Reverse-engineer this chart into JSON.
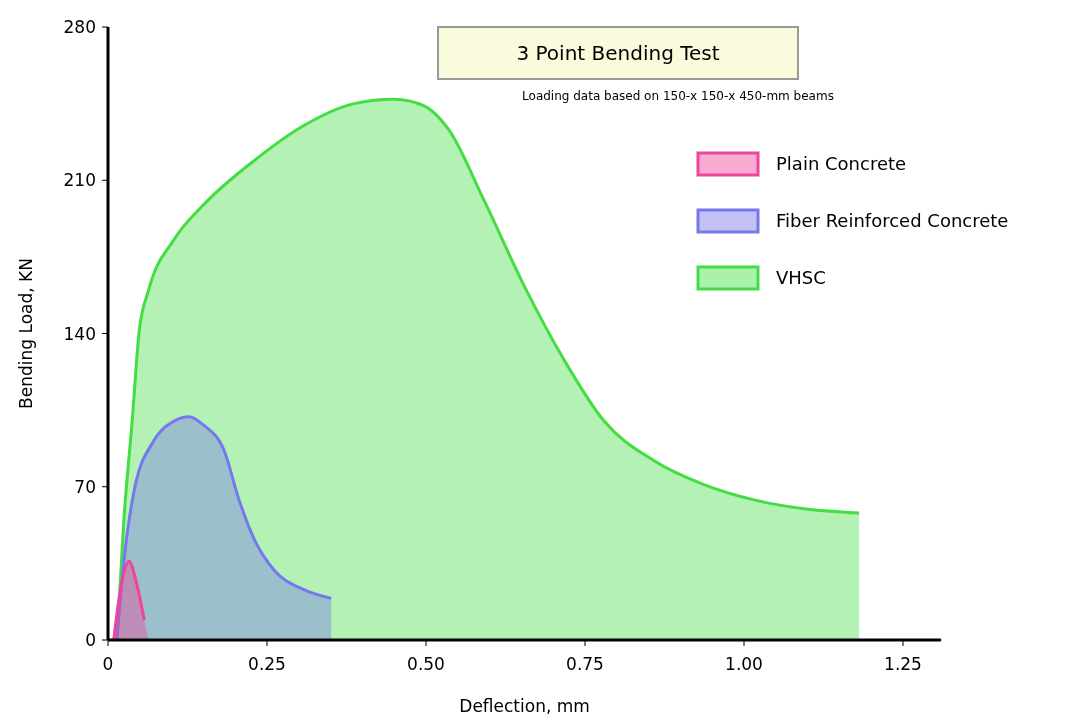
{
  "chart_data": {
    "type": "area",
    "title": "3 Point Bending Test",
    "subtitle": "Loading data based on 150-x 150-x 450-mm beams",
    "xlabel": "Deflection, mm",
    "ylabel": "Bending Load, KN",
    "xlim": [
      0,
      1.31
    ],
    "ylim": [
      0,
      280
    ],
    "xticks": [
      0,
      0.25,
      {
        "value": 0.5,
        "label": "0.50"
      },
      0.75,
      {
        "value": 1,
        "label": "1.00"
      },
      1.25
    ],
    "yticks": [
      0,
      70,
      140,
      210,
      280
    ],
    "grid": false,
    "legend": "top right",
    "series": [
      {
        "name": "VHSC",
        "color": "#44dd44",
        "x": [
          0.014,
          0.025,
          0.038,
          0.049,
          0.064,
          0.104,
          0.151,
          0.23,
          0.308,
          0.387,
          0.45,
          0.497,
          0.536,
          0.591,
          0.654,
          0.717,
          0.78,
          0.858,
          0.937,
          1.016,
          1.094,
          1.181,
          1.181
        ],
        "values": [
          0,
          55,
          100,
          141,
          160,
          183,
          199,
          219,
          235,
          245,
          247,
          244,
          233,
          201,
          162,
          128,
          100,
          82,
          71,
          64,
          60,
          58,
          0
        ]
      },
      {
        "name": "Fiber Reinforced Concrete",
        "color": "#7777ee",
        "x": [
          0.014,
          0.025,
          0.041,
          0.072,
          0.104,
          0.127,
          0.151,
          0.182,
          0.206,
          0.23,
          0.261,
          0.308,
          0.351,
          0.351
        ],
        "values": [
          0,
          36,
          68,
          91,
          100,
          102,
          98,
          87,
          64,
          46,
          32,
          23,
          19,
          0
        ]
      },
      {
        "name": "Plain Concrete",
        "color": "#ee4499",
        "x": [
          0.009,
          0.022,
          0.033,
          0.044,
          0.057,
          0.064
        ],
        "values": [
          0,
          27,
          36,
          27,
          9,
          0
        ]
      }
    ]
  }
}
